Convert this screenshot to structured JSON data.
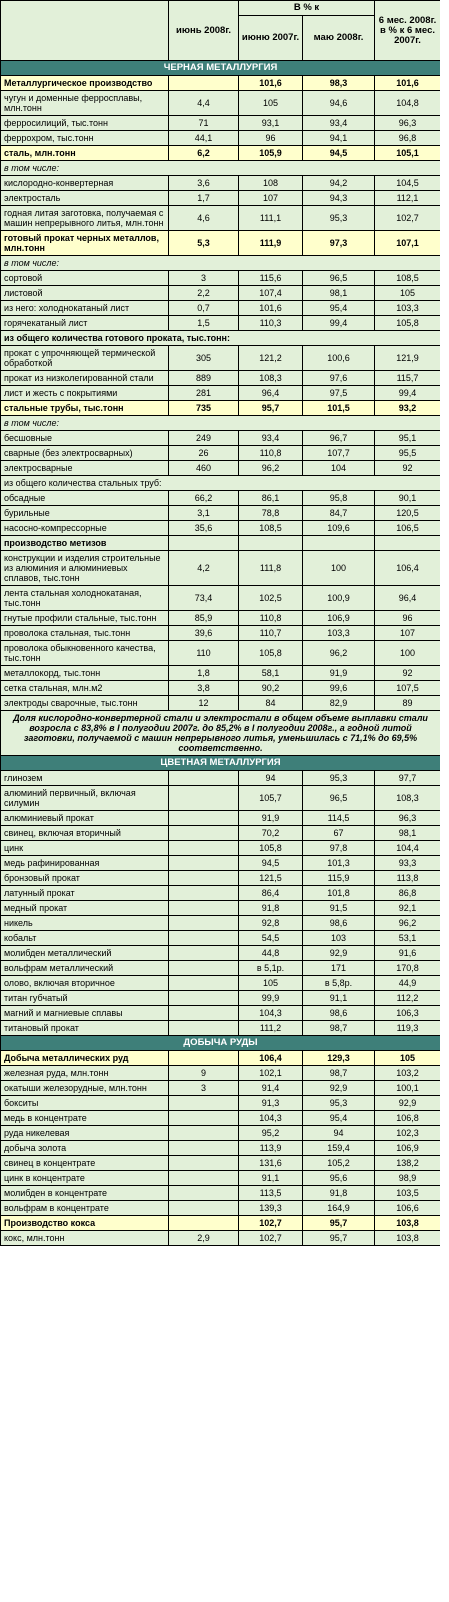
{
  "header": {
    "col_june": "июнь 2008г.",
    "pct_group": "В % к",
    "col_june2007": "июню 2007г.",
    "col_may2008": "маю 2008г.",
    "col_6m": "6 мес. 2008г. в % к 6 мес. 2007г."
  },
  "sections": [
    {
      "title": "ЧЕРНАЯ МЕТАЛЛУРГИЯ",
      "rows": [
        {
          "label": "Металлургическое производство",
          "v": [
            "",
            "101,6",
            "98,3",
            "101,6"
          ],
          "style": "bold"
        },
        {
          "label": "чугун и доменные ферросплавы, млн.тонн",
          "v": [
            "4,4",
            "105",
            "94,6",
            "104,8"
          ]
        },
        {
          "label": "ферросилиций, тыс.тонн",
          "v": [
            "71",
            "93,1",
            "93,4",
            "96,3"
          ]
        },
        {
          "label": "феррохром, тыс.тонн",
          "v": [
            "44,1",
            "96",
            "94,1",
            "96,8"
          ]
        },
        {
          "label": "сталь, млн.тонн",
          "v": [
            "6,2",
            "105,9",
            "94,5",
            "105,1"
          ],
          "style": "bold"
        },
        {
          "label": "в том числе:",
          "style": "sub"
        },
        {
          "label": "кислородно-конвертерная",
          "v": [
            "3,6",
            "108",
            "94,2",
            "104,5"
          ]
        },
        {
          "label": "электросталь",
          "v": [
            "1,7",
            "107",
            "94,3",
            "112,1"
          ]
        },
        {
          "label": "годная литая заготовка, получаемая с машин непрерывного литья, млн.тонн",
          "v": [
            "4,6",
            "111,1",
            "95,3",
            "102,7"
          ]
        },
        {
          "label": "готовый прокат черных металлов, млн.тонн",
          "v": [
            "5,3",
            "111,9",
            "97,3",
            "107,1"
          ],
          "style": "bold"
        },
        {
          "label": "в том числе:",
          "style": "sub"
        },
        {
          "label": "сортовой",
          "v": [
            "3",
            "115,6",
            "96,5",
            "108,5"
          ]
        },
        {
          "label": "листовой",
          "v": [
            "2,2",
            "107,4",
            "98,1",
            "105"
          ]
        },
        {
          "label": "из него: холоднокатаный лист",
          "v": [
            "0,7",
            "101,6",
            "95,4",
            "103,3"
          ]
        },
        {
          "label": "горячекатаный лист",
          "v": [
            "1,5",
            "110,3",
            "99,4",
            "105,8"
          ]
        },
        {
          "label": "из общего количества готового проката, тыс.тонн:",
          "style": "span-bold"
        },
        {
          "label": "прокат с упрочняющей термической обработкой",
          "v": [
            "305",
            "121,2",
            "100,6",
            "121,9"
          ]
        },
        {
          "label": "прокат из низколегированной стали",
          "v": [
            "889",
            "108,3",
            "97,6",
            "115,7"
          ]
        },
        {
          "label": "лист и жесть с покрытиями",
          "v": [
            "281",
            "96,4",
            "97,5",
            "99,4"
          ]
        },
        {
          "label": "стальные трубы, тыс.тонн",
          "v": [
            "735",
            "95,7",
            "101,5",
            "93,2"
          ],
          "style": "bold"
        },
        {
          "label": "в том числе:",
          "style": "sub"
        },
        {
          "label": "бесшовные",
          "v": [
            "249",
            "93,4",
            "96,7",
            "95,1"
          ]
        },
        {
          "label": "сварные (без электросварных)",
          "v": [
            "26",
            "110,8",
            "107,7",
            "95,5"
          ]
        },
        {
          "label": "электросварные",
          "v": [
            "460",
            "96,2",
            "104",
            "92"
          ]
        },
        {
          "label": "из общего количества стальных труб:",
          "style": "span"
        },
        {
          "label": "обсадные",
          "v": [
            "66,2",
            "86,1",
            "95,8",
            "90,1"
          ]
        },
        {
          "label": "бурильные",
          "v": [
            "3,1",
            "78,8",
            "84,7",
            "120,5"
          ]
        },
        {
          "label": "насосно-компрессорные",
          "v": [
            "35,6",
            "108,5",
            "109,6",
            "106,5"
          ]
        },
        {
          "label": "производство метизов",
          "style": "plain-bold",
          "v": [
            "",
            "",
            "",
            ""
          ]
        },
        {
          "label": "конструкции и изделия строительные из алюминия и алюминиевых сплавов, тыс.тонн",
          "v": [
            "4,2",
            "111,8",
            "100",
            "106,4"
          ]
        },
        {
          "label": "лента стальная холоднокатаная, тыс.тонн",
          "v": [
            "73,4",
            "102,5",
            "100,9",
            "96,4"
          ]
        },
        {
          "label": "гнутые профили стальные, тыс.тонн",
          "v": [
            "85,9",
            "110,8",
            "106,9",
            "96"
          ]
        },
        {
          "label": "проволока стальная, тыс.тонн",
          "v": [
            "39,6",
            "110,7",
            "103,3",
            "107"
          ]
        },
        {
          "label": "проволока обыкновенного качества, тыс.тонн",
          "v": [
            "110",
            "105,8",
            "96,2",
            "100"
          ]
        },
        {
          "label": "металлокорд, тыс.тонн",
          "v": [
            "1,8",
            "58,1",
            "91,9",
            "92"
          ]
        },
        {
          "label": "сетка стальная, млн.м2",
          "v": [
            "3,8",
            "90,2",
            "99,6",
            "107,5"
          ]
        },
        {
          "label": "электроды сварочные, тыс.тонн",
          "v": [
            "12",
            "84",
            "82,9",
            "89"
          ]
        },
        {
          "label": "Доля кислородно-конвертерной стали и электростали в общем объеме выплавки стали возросла с 83,8% в I полугодии 2007г. до 85,2% в I полугодии 2008г., а годной литой заготовки, получаемой с машин непрерывного литья, уменьшилась с 71,1% до 69,5% соответственно.",
          "style": "note"
        }
      ]
    },
    {
      "title": "ЦВЕТНАЯ МЕТАЛЛУРГИЯ",
      "rows": [
        {
          "label": "глинозем",
          "v": [
            "",
            "94",
            "95,3",
            "97,7"
          ]
        },
        {
          "label": "алюминий первичный, включая силумин",
          "v": [
            "",
            "105,7",
            "96,5",
            "108,3"
          ]
        },
        {
          "label": "алюминиевый прокат",
          "v": [
            "",
            "91,9",
            "114,5",
            "96,3"
          ]
        },
        {
          "label": "свинец, включая вторичный",
          "v": [
            "",
            "70,2",
            "67",
            "98,1"
          ]
        },
        {
          "label": "цинк",
          "v": [
            "",
            "105,8",
            "97,8",
            "104,4"
          ]
        },
        {
          "label": "медь рафинированная",
          "v": [
            "",
            "94,5",
            "101,3",
            "93,3"
          ]
        },
        {
          "label": "бронзовый прокат",
          "v": [
            "",
            "121,5",
            "115,9",
            "113,8"
          ]
        },
        {
          "label": "латунный прокат",
          "v": [
            "",
            "86,4",
            "101,8",
            "86,8"
          ]
        },
        {
          "label": "медный прокат",
          "v": [
            "",
            "91,8",
            "91,5",
            "92,1"
          ]
        },
        {
          "label": "никель",
          "v": [
            "",
            "92,8",
            "98,6",
            "96,2"
          ]
        },
        {
          "label": "кобальт",
          "v": [
            "",
            "54,5",
            "103",
            "53,1"
          ]
        },
        {
          "label": "молибден металлический",
          "v": [
            "",
            "44,8",
            "92,9",
            "91,6"
          ]
        },
        {
          "label": "вольфрам металлический",
          "v": [
            "",
            "в 5,1р.",
            "171",
            "170,8"
          ]
        },
        {
          "label": "олово, включая вторичное",
          "v": [
            "",
            "105",
            "в 5,8р.",
            "44,9"
          ]
        },
        {
          "label": "титан губчатый",
          "v": [
            "",
            "99,9",
            "91,1",
            "112,2"
          ]
        },
        {
          "label": "магний и магниевые сплавы",
          "v": [
            "",
            "104,3",
            "98,6",
            "106,3"
          ]
        },
        {
          "label": "титановый прокат",
          "v": [
            "",
            "111,2",
            "98,7",
            "119,3"
          ]
        }
      ]
    },
    {
      "title": "ДОБЫЧА РУДЫ",
      "rows": [
        {
          "label": "Добыча металлических руд",
          "v": [
            "",
            "106,4",
            "129,3",
            "105"
          ],
          "style": "bold"
        },
        {
          "label": "железная руда, млн.тонн",
          "v": [
            "9",
            "102,1",
            "98,7",
            "103,2"
          ]
        },
        {
          "label": "окатыши железорудные, млн.тонн",
          "v": [
            "3",
            "91,4",
            "92,9",
            "100,1"
          ]
        },
        {
          "label": "бокситы",
          "v": [
            "",
            "91,3",
            "95,3",
            "92,9"
          ]
        },
        {
          "label": "медь в концентрате",
          "v": [
            "",
            "104,3",
            "95,4",
            "106,8"
          ]
        },
        {
          "label": "руда никелевая",
          "v": [
            "",
            "95,2",
            "94",
            "102,3"
          ]
        },
        {
          "label": "добыча золота",
          "v": [
            "",
            "113,9",
            "159,4",
            "106,9"
          ]
        },
        {
          "label": "свинец в концентрате",
          "v": [
            "",
            "131,6",
            "105,2",
            "138,2"
          ]
        },
        {
          "label": "цинк в концентрате",
          "v": [
            "",
            "91,1",
            "95,6",
            "98,9"
          ]
        },
        {
          "label": "молибден в концентрате",
          "v": [
            "",
            "113,5",
            "91,8",
            "103,5"
          ]
        },
        {
          "label": "вольфрам в концентрате",
          "v": [
            "",
            "139,3",
            "164,9",
            "106,6"
          ]
        },
        {
          "label": "Производство кокса",
          "v": [
            "",
            "102,7",
            "95,7",
            "103,8"
          ],
          "style": "bold"
        },
        {
          "label": "кокс, млн.тонн",
          "v": [
            "2,9",
            "102,7",
            "95,7",
            "103,8"
          ]
        }
      ]
    }
  ]
}
